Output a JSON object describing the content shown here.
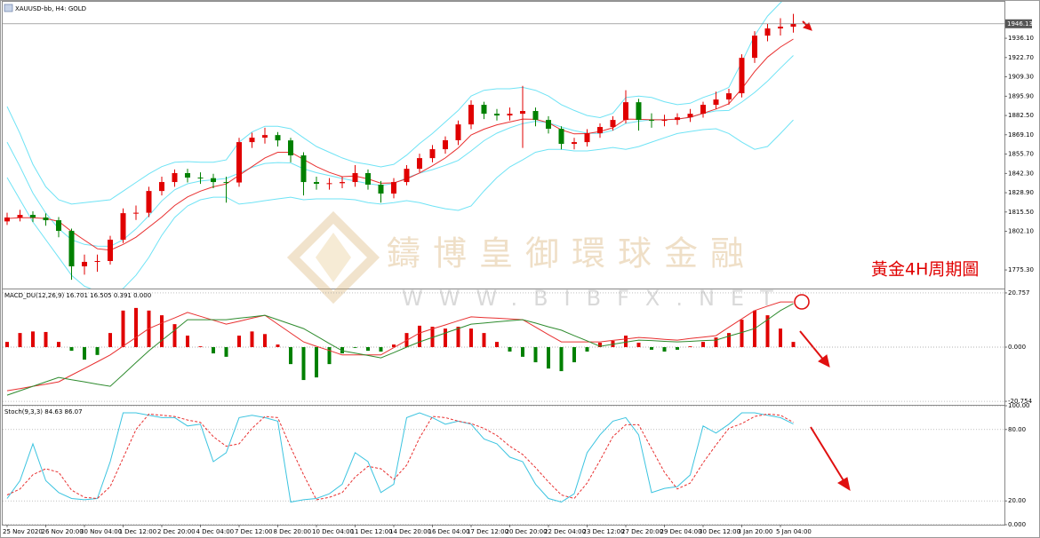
{
  "chart_data": [
    {
      "type": "candlestick",
      "title": "XAUUSD-bb, H4:  GOLD",
      "categories": [
        "25 Nov 2020",
        null,
        null,
        "26 Nov 20:00",
        null,
        null,
        "30 Nov 04:00",
        null,
        null,
        "1 Dec 12:00",
        null,
        null,
        "2 Dec 20:00",
        null,
        null,
        "4 Dec 04:00",
        null,
        null,
        "7 Dec 12:00",
        null,
        null,
        "8 Dec 20:00",
        null,
        null,
        "10 Dec 04:00",
        null,
        null,
        "11 Dec 12:00",
        null,
        null,
        "14 Dec 20:00",
        null,
        null,
        "16 Dec 04:00",
        null,
        null,
        "17 Dec 12:00",
        null,
        null,
        "20 Dec 20:00",
        null,
        null,
        "22 Dec 04:00",
        null,
        null,
        "23 Dec 12:00",
        null,
        null,
        "27 Dec 20:00",
        null,
        null,
        "29 Dec 04:00",
        null,
        null,
        "30 Dec 12:00",
        null,
        null,
        "3 Jan 20:00",
        null,
        null,
        "5 Jan 04:00",
        null
      ],
      "open": [
        1809,
        1811.7,
        1813.5,
        1811.7,
        1809.8,
        1802.4,
        1777.8,
        1780.9,
        1781.5,
        1796.3,
        1814.7,
        1815,
        1830.1,
        1836.3,
        1842.5,
        1839.4,
        1839,
        1836.3,
        1836,
        1864,
        1867.1,
        1868.9,
        1865.2,
        1854.8,
        1836.3,
        1835.1,
        1835.5,
        1836.3,
        1842.5,
        1834.5,
        1828.3,
        1836.3,
        1845.5,
        1852.9,
        1859.1,
        1865.3,
        1876.3,
        1889.9,
        1883.7,
        1882.5,
        1883.7,
        1885.6,
        1879.4,
        1873.3,
        1862.8,
        1864,
        1870.2,
        1874.5,
        1879.4,
        1891.7,
        1879.4,
        1879,
        1879.4,
        1881.2,
        1883.7,
        1889.9,
        1893.6,
        1897.9,
        1922.5,
        1937.9,
        1942.9,
        1944.1
      ],
      "high": [
        1815,
        1817,
        1816,
        1814.5,
        1812,
        1804,
        1786,
        1786,
        1799,
        1818,
        1820,
        1833,
        1840,
        1845,
        1845.5,
        1843,
        1842,
        1840,
        1867,
        1870.5,
        1874,
        1871,
        1867,
        1857,
        1840,
        1839,
        1840,
        1848,
        1845,
        1837,
        1839,
        1848,
        1856,
        1862,
        1868,
        1879,
        1893,
        1892,
        1887,
        1888,
        1903,
        1888,
        1882,
        1875,
        1867,
        1873,
        1877,
        1882,
        1900,
        1894,
        1884,
        1883,
        1884,
        1887,
        1892,
        1899,
        1901,
        1925,
        1941,
        1946,
        1950,
        1953
      ],
      "low": [
        1806.5,
        1809,
        1808.5,
        1806,
        1798,
        1768.5,
        1772,
        1774,
        1779,
        1794,
        1810,
        1812,
        1827,
        1833,
        1836,
        1835,
        1832,
        1822,
        1833,
        1860,
        1863,
        1861,
        1850,
        1827,
        1831,
        1831,
        1832,
        1833,
        1831,
        1822,
        1825,
        1834,
        1843,
        1850,
        1856,
        1862,
        1873,
        1880,
        1879,
        1879,
        1860,
        1875,
        1870,
        1859,
        1859,
        1861,
        1867,
        1872,
        1877,
        1872,
        1874,
        1875,
        1876,
        1878,
        1881,
        1887,
        1890,
        1895,
        1919,
        1934,
        1938,
        1940
      ],
      "close": [
        1811.7,
        1813.5,
        1811.7,
        1809.8,
        1802.4,
        1777.8,
        1780.9,
        1781.5,
        1796.3,
        1814.7,
        1815,
        1830.1,
        1836.3,
        1842.5,
        1839.4,
        1839,
        1836.3,
        1836,
        1864,
        1867.1,
        1868.9,
        1865.2,
        1854.8,
        1836.3,
        1835.1,
        1835.5,
        1836.3,
        1842.5,
        1834.5,
        1828.3,
        1836.3,
        1845.5,
        1852.9,
        1859.1,
        1865.3,
        1876.3,
        1889.9,
        1883.7,
        1882.5,
        1883.7,
        1885.6,
        1879.4,
        1873.3,
        1862.8,
        1864,
        1870.2,
        1874.5,
        1879.4,
        1891.7,
        1879.4,
        1879,
        1879.4,
        1881.2,
        1883.7,
        1889.9,
        1893.6,
        1897.9,
        1922.5,
        1937.9,
        1942.9,
        1944.1,
        1946.13
      ],
      "up_color": "#e00000",
      "down_color": "#008000",
      "overlays": [
        {
          "color": "#6fe3f5",
          "values": [
            1888.7,
            1870,
            1848.6,
            1833,
            1824,
            1821,
            1822,
            1823,
            1824,
            1830,
            1836,
            1842,
            1847,
            1850,
            1850.5,
            1850,
            1850,
            1851.7,
            1864,
            1871,
            1875,
            1875,
            1873.3,
            1867,
            1861,
            1857,
            1853,
            1850,
            1848.6,
            1846.8,
            1848.6,
            1855,
            1863,
            1870,
            1878,
            1886,
            1896,
            1900,
            1901,
            1901,
            1902,
            1900,
            1896,
            1890,
            1886,
            1882.5,
            1881,
            1884,
            1895,
            1896,
            1895,
            1892,
            1890,
            1891,
            1895,
            1898,
            1902,
            1919.5,
            1938,
            1951.5,
            1960.7,
            1968.8
          ]
        },
        {
          "color": "#6fe3f5",
          "values": [
            1864,
            1847,
            1828.6,
            1814.7,
            1804,
            1796.3,
            1793,
            1791.8,
            1791.7,
            1796.2,
            1803.8,
            1813,
            1823.2,
            1830.9,
            1835.1,
            1837,
            1837.9,
            1838.8,
            1842.5,
            1846.5,
            1849.2,
            1849.8,
            1849.6,
            1845.5,
            1842.8,
            1840.8,
            1838.8,
            1837,
            1835.3,
            1833.9,
            1835.3,
            1839.2,
            1842.5,
            1844.9,
            1847.9,
            1851.3,
            1857.9,
            1865,
            1870.2,
            1873.9,
            1876.9,
            1878.5,
            1877.5,
            1874.5,
            1872,
            1870.2,
            1870,
            1872.2,
            1877,
            1878.5,
            1879.5,
            1879.5,
            1880,
            1881.2,
            1883.9,
            1885.7,
            1886,
            1891.8,
            1898.5,
            1906.3,
            1915.4,
            1924.1
          ]
        },
        {
          "color": "#6fe3f5",
          "values": [
            1839.4,
            1824,
            1808.6,
            1796.3,
            1784,
            1771.6,
            1764,
            1760.5,
            1759.3,
            1762.4,
            1771.6,
            1784,
            1799.3,
            1811.7,
            1819.7,
            1824,
            1825.8,
            1825.8,
            1821,
            1822,
            1823.4,
            1824.6,
            1825.8,
            1824,
            1824.6,
            1824.6,
            1824.6,
            1824,
            1822,
            1821,
            1822,
            1823.4,
            1822,
            1819.7,
            1817.8,
            1816.6,
            1819.7,
            1830.1,
            1839.4,
            1846.8,
            1851.7,
            1857,
            1859,
            1859,
            1857.9,
            1857.9,
            1859,
            1860.3,
            1859,
            1860.9,
            1864,
            1867,
            1870,
            1871.4,
            1872.7,
            1873.3,
            1870,
            1864,
            1859,
            1861,
            1870,
            1879.4
          ]
        },
        {
          "color": "#e83030",
          "values": [
            1811,
            1811.5,
            1811.5,
            1811,
            1809,
            1802,
            1796,
            1790,
            1789,
            1793,
            1798,
            1805,
            1812,
            1820,
            1826,
            1830,
            1833,
            1835,
            1841,
            1847,
            1853,
            1857,
            1857,
            1852,
            1847,
            1843,
            1840,
            1840.5,
            1838.5,
            1835.5,
            1835.7,
            1838.5,
            1842.6,
            1847.6,
            1853,
            1860,
            1869,
            1873,
            1876,
            1878,
            1880,
            1879.8,
            1877.5,
            1872.5,
            1869.7,
            1869.9,
            1871.4,
            1874,
            1880,
            1879.8,
            1879.5,
            1879.5,
            1880,
            1881.3,
            1884,
            1887,
            1890.7,
            1901,
            1913,
            1923,
            1930,
            1935.5
          ]
        }
      ],
      "last_price": {
        "value": 1946.13,
        "label": "1946.13"
      },
      "ylim": [
        1762.4,
        1961.4
      ],
      "yticks": [
        {
          "value": 1936.1,
          "label": "1936.10"
        },
        {
          "value": 1922.7,
          "label": "1922.70"
        },
        {
          "value": 1909.3,
          "label": "1909.30"
        },
        {
          "value": 1895.9,
          "label": "1895.90"
        },
        {
          "value": 1882.5,
          "label": "1882.50"
        },
        {
          "value": 1869.1,
          "label": "1869.10"
        },
        {
          "value": 1855.7,
          "label": "1855.70"
        },
        {
          "value": 1842.3,
          "label": "1842.30"
        },
        {
          "value": 1828.9,
          "label": "1828.90"
        },
        {
          "value": 1815.5,
          "label": "1815.50"
        },
        {
          "value": 1802.1,
          "label": "1802.10"
        },
        {
          "value": 1775.3,
          "label": "1775.30"
        }
      ],
      "grid": false
    },
    {
      "type": "macd",
      "title": "MACD_DU(12,26,9) 16.701 16.505 0.391 0.000",
      "values": [
        2,
        5.4,
        6,
        5.8,
        2,
        -1.4,
        -4.8,
        -3,
        5.4,
        14,
        15,
        14,
        12.2,
        8.8,
        4.4,
        0.3,
        -2.4,
        -3.7,
        4.4,
        6,
        5,
        1,
        -6.5,
        -12.6,
        -11.6,
        -6.5,
        -2.4,
        -0.3,
        -1.4,
        -1.7,
        1,
        5.4,
        8.2,
        7.8,
        7.1,
        7.8,
        7.1,
        5.4,
        2,
        -1.7,
        -3.7,
        -5.8,
        -8.2,
        -9.2,
        -5.8,
        -1.7,
        1.7,
        2.4,
        4.4,
        1.7,
        -1,
        -1.7,
        -1,
        0.3,
        2,
        3.7,
        5.4,
        10.5,
        14,
        12.2,
        7.1,
        2
      ],
      "positive_color": "#e00000",
      "negative_color": "#008000",
      "series": [
        {
          "color": "#e83030",
          "values": [
            -16.7,
            -15.9,
            -15,
            -14.2,
            -13.3,
            -10.7,
            -8.2,
            -5.6,
            -3,
            0.4,
            3.7,
            7.1,
            9.2,
            11.2,
            13.3,
            11.8,
            10.3,
            8.8,
            9.9,
            11.1,
            12.2,
            8.8,
            5.4,
            2,
            0.3,
            -1.3,
            -3,
            -3,
            -3,
            -3,
            -0.2,
            2.6,
            5.4,
            7,
            8.5,
            10.1,
            11.6,
            11.3,
            11.1,
            10.8,
            10.5,
            7.7,
            4.8,
            2,
            2,
            2,
            2,
            2.6,
            3.1,
            3.7,
            3.4,
            3,
            2.7,
            3.3,
            3.8,
            4.4,
            7.6,
            10.8,
            14,
            15.7,
            17.3,
            17.3
          ]
        },
        {
          "color": "#2e8b2e",
          "values": [
            -18.4,
            -16.7,
            -15,
            -13.3,
            -11.6,
            -12.5,
            -13.3,
            -14.2,
            -15,
            -10.5,
            -5.9,
            -1.4,
            2.6,
            6.5,
            10.5,
            10.5,
            10.5,
            10.5,
            11.1,
            11.6,
            12.2,
            10.5,
            8.8,
            7.1,
            4.3,
            1.4,
            -1.4,
            -2.3,
            -3.2,
            -4.1,
            -2.1,
            0,
            2,
            3.7,
            5.4,
            7.1,
            8.8,
            9.2,
            9.7,
            10.1,
            10.5,
            9.2,
            7.8,
            6.5,
            4.4,
            2.4,
            0.3,
            1.1,
            1.9,
            2.7,
            2.5,
            2.2,
            2,
            2.2,
            2.5,
            2.7,
            4.2,
            5.6,
            7.1,
            10.5,
            14,
            16.7
          ]
        }
      ],
      "ylim": [
        -22.1,
        22.1
      ],
      "yticks": [
        20.757,
        {
          "value": 0,
          "label": "0.000"
        },
        -20.754
      ],
      "grid": true
    },
    {
      "type": "stochastic",
      "title": "Stoch(9,3,3) 84.63 86.07",
      "series": [
        {
          "color": "#3cc4e0",
          "line_style": "solid",
          "values": [
            22,
            37,
            68,
            37,
            27,
            22,
            21,
            22,
            53,
            94,
            94,
            92,
            90,
            90,
            83,
            84.5,
            53,
            60.5,
            90,
            92,
            90,
            87,
            19,
            21,
            22,
            26,
            34,
            60.5,
            53,
            27,
            34,
            90,
            94,
            90,
            84.5,
            87,
            84.5,
            72,
            68,
            56.8,
            53,
            34,
            22,
            19,
            26,
            60.5,
            75.5,
            87,
            90,
            75.5,
            27,
            30.5,
            32,
            41.8,
            83,
            77,
            84.5,
            94,
            94,
            92,
            90,
            84.63
          ]
        },
        {
          "color": "#e83030",
          "line_style": "dashed",
          "values": [
            25,
            30,
            42,
            47,
            44,
            29,
            23,
            22,
            32,
            56,
            80,
            93,
            92,
            91,
            88,
            86,
            74,
            66,
            68,
            81,
            91,
            90,
            65,
            42,
            21,
            23,
            27,
            40,
            49,
            47,
            38,
            50,
            73,
            91,
            90,
            87,
            85,
            81,
            75,
            66,
            59,
            48,
            36,
            25,
            22,
            35,
            54,
            74,
            84,
            84,
            64,
            44,
            30,
            35,
            52,
            67,
            81,
            85,
            91,
            93,
            92,
            86.07
          ]
        }
      ],
      "ylim": [
        0,
        100
      ],
      "yticks": [
        {
          "value": 100,
          "label": "100.00"
        },
        {
          "value": 80,
          "label": "80.00"
        },
        {
          "value": 20,
          "label": "20.00"
        },
        {
          "value": 0,
          "label": "0.000"
        }
      ],
      "grid": true
    }
  ],
  "watermark": {
    "name": "鑄博皇御環球金融",
    "url": "WWW.BIBFX.NET"
  },
  "annotation": "黃金4H周期圖"
}
